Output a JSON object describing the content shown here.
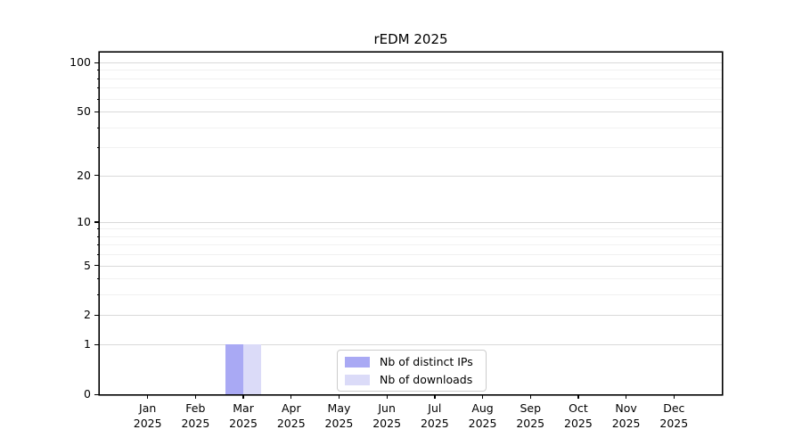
{
  "chart_data": {
    "type": "bar",
    "title": "rEDM 2025",
    "categories": [
      "Jan 2025",
      "Feb 2025",
      "Mar 2025",
      "Apr 2025",
      "May 2025",
      "Jun 2025",
      "Jul 2025",
      "Aug 2025",
      "Sep 2025",
      "Oct 2025",
      "Nov 2025",
      "Dec 2025"
    ],
    "x_tick_month": [
      "Jan",
      "Feb",
      "Mar",
      "Apr",
      "May",
      "Jun",
      "Jul",
      "Aug",
      "Sep",
      "Oct",
      "Nov",
      "Dec"
    ],
    "x_tick_year": "2025",
    "y_scale": "log1p",
    "ylim": [
      0,
      100
    ],
    "y_major_ticks": [
      0,
      1,
      2,
      5,
      10,
      20,
      50,
      100
    ],
    "y_minor_ticks": [
      3,
      4,
      6,
      7,
      8,
      9,
      30,
      40,
      60,
      70,
      80,
      90
    ],
    "grid": "horizontal, major and minor",
    "legend_position": "lower center inside plot",
    "series": [
      {
        "name": "Nb of distinct IPs",
        "color": "#a9a9f4",
        "values": [
          0,
          0,
          1,
          0,
          0,
          0,
          0,
          0,
          0,
          0,
          0,
          0
        ]
      },
      {
        "name": "Nb of downloads",
        "color": "#dbdbf8",
        "values": [
          0,
          0,
          1,
          0,
          0,
          0,
          0,
          0,
          0,
          0,
          0,
          0
        ]
      }
    ]
  },
  "colors": {
    "background": "#ffffff",
    "axis": "#000000",
    "major_gridline": "#d9d9d9",
    "minor_gridline": "#f1f1f1",
    "legend_border": "#cccccc",
    "text": "#000000"
  }
}
